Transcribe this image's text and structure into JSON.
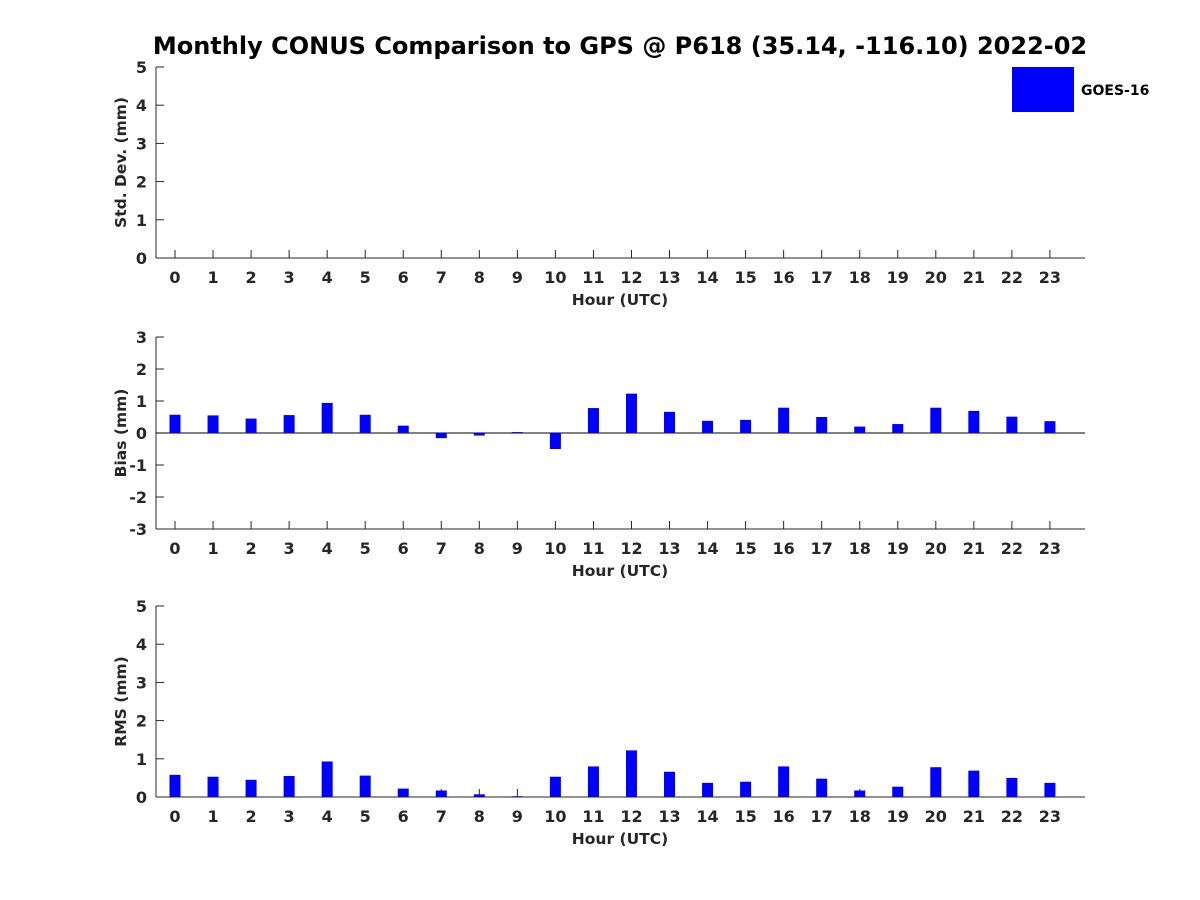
{
  "chart_data": {
    "type": "bar",
    "title": "Monthly CONUS Comparison to GPS @ P618 (35.14, -116.10) 2022-02",
    "legend": {
      "entries": [
        "GOES-16"
      ],
      "position": "top-right"
    },
    "colors": {
      "series": "#0000ff",
      "axis": "#262626",
      "zero_line": "#000000"
    },
    "categories": [
      "0",
      "1",
      "2",
      "3",
      "4",
      "5",
      "6",
      "7",
      "8",
      "9",
      "10",
      "11",
      "12",
      "13",
      "14",
      "15",
      "16",
      "17",
      "18",
      "19",
      "20",
      "21",
      "22",
      "23"
    ],
    "panels": [
      {
        "ylabel": "Std. Dev. (mm)",
        "xlabel": "Hour (UTC)",
        "ylim": [
          0,
          5
        ],
        "yticks": [
          0,
          1,
          2,
          3,
          4,
          5
        ],
        "series": [
          {
            "name": "GOES-16",
            "values": []
          }
        ]
      },
      {
        "ylabel": "Bias (mm)",
        "xlabel": "Hour (UTC)",
        "ylim": [
          -3,
          3
        ],
        "yticks": [
          -3,
          -2,
          -1,
          0,
          1,
          2,
          3
        ],
        "series": [
          {
            "name": "GOES-16",
            "values": [
              0.57,
              0.55,
              0.45,
              0.56,
              0.94,
              0.57,
              0.23,
              -0.16,
              -0.08,
              0.03,
              -0.5,
              0.78,
              1.23,
              0.66,
              0.38,
              0.41,
              0.79,
              0.5,
              0.2,
              0.28,
              0.79,
              0.69,
              0.51,
              0.37
            ]
          }
        ]
      },
      {
        "ylabel": "RMS (mm)",
        "xlabel": "Hour (UTC)",
        "ylim": [
          0,
          5
        ],
        "yticks": [
          0,
          1,
          2,
          3,
          4,
          5
        ],
        "series": [
          {
            "name": "GOES-16",
            "values": [
              0.58,
              0.53,
              0.45,
              0.55,
              0.93,
              0.56,
              0.22,
              0.17,
              0.07,
              0.02,
              0.53,
              0.8,
              1.22,
              0.66,
              0.37,
              0.4,
              0.8,
              0.48,
              0.17,
              0.27,
              0.78,
              0.69,
              0.5,
              0.37
            ]
          }
        ]
      }
    ]
  }
}
